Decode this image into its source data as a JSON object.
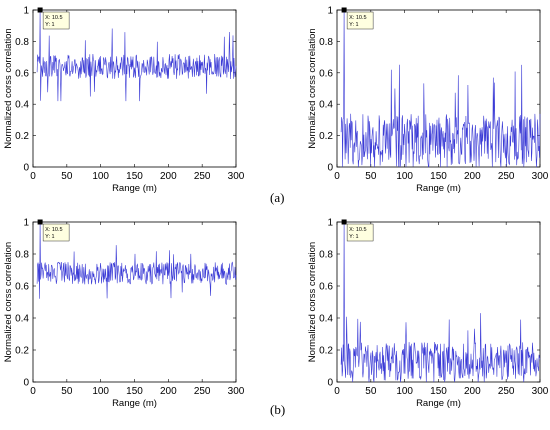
{
  "panel_labels": [
    "(a)",
    "(b)"
  ],
  "chart_data": [
    {
      "type": "line",
      "panel": "(a)",
      "xlabel": "Range (m)",
      "ylabel": "Normalized corss correlation",
      "xlim": [
        0,
        300
      ],
      "ylim": [
        0,
        1
      ],
      "xticks": [
        0,
        50,
        100,
        150,
        200,
        250,
        300
      ],
      "yticks": [
        0,
        0.2,
        0.4,
        0.6,
        0.8,
        1
      ],
      "series_color": "#3b3bd6",
      "series": [
        {
          "x_start": 6,
          "x_end": 300,
          "peak_x": 10.5,
          "peak_y": 1,
          "baseline_mean": 0.64,
          "noise_amplitude": 0.08,
          "extreme_min": 0.42,
          "extreme_max": 0.9
        }
      ],
      "datatip": {
        "x": 10.5,
        "y": 1,
        "line1": "X: 10.5",
        "line2": "Y: 1"
      }
    },
    {
      "type": "line",
      "panel": "(a)",
      "xlabel": "Range (m)",
      "ylabel": "Normalized corss correlation",
      "xlim": [
        0,
        300
      ],
      "ylim": [
        0,
        1
      ],
      "xticks": [
        0,
        50,
        100,
        150,
        200,
        250,
        300
      ],
      "yticks": [
        0,
        0.2,
        0.4,
        0.6,
        0.8,
        1
      ],
      "series_color": "#3b3bd6",
      "series": [
        {
          "x_start": 6,
          "x_end": 300,
          "peak_x": 10.5,
          "peak_y": 1,
          "baseline_mean": 0.17,
          "noise_amplitude": 0.17,
          "extreme_min": 0.0,
          "extreme_max": 0.66
        }
      ],
      "datatip": {
        "x": 10.5,
        "y": 1,
        "line1": "X: 10.5",
        "line2": "Y: 1"
      }
    },
    {
      "type": "line",
      "panel": "(b)",
      "xlabel": "Range (m)",
      "ylabel": "Normalized corss correlation",
      "xlim": [
        0,
        300
      ],
      "ylim": [
        0,
        1
      ],
      "xticks": [
        0,
        50,
        100,
        150,
        200,
        250,
        300
      ],
      "yticks": [
        0,
        0.2,
        0.4,
        0.6,
        0.8,
        1
      ],
      "series_color": "#3b3bd6",
      "series": [
        {
          "x_start": 6,
          "x_end": 300,
          "peak_x": 10.5,
          "peak_y": 1,
          "baseline_mean": 0.68,
          "noise_amplitude": 0.07,
          "extreme_min": 0.52,
          "extreme_max": 0.86
        }
      ],
      "datatip": {
        "x": 10.5,
        "y": 1,
        "line1": "X: 10.5",
        "line2": "Y: 1"
      }
    },
    {
      "type": "line",
      "panel": "(b)",
      "xlabel": "Range (m)",
      "ylabel": "Normalized corss correlation",
      "xlim": [
        0,
        300
      ],
      "ylim": [
        0,
        1
      ],
      "xticks": [
        0,
        50,
        100,
        150,
        200,
        250,
        300
      ],
      "yticks": [
        0,
        0.2,
        0.4,
        0.6,
        0.8,
        1
      ],
      "series_color": "#3b3bd6",
      "series": [
        {
          "x_start": 6,
          "x_end": 300,
          "peak_x": 10.5,
          "peak_y": 1,
          "baseline_mean": 0.13,
          "noise_amplitude": 0.12,
          "extreme_min": 0.0,
          "extreme_max": 0.45
        }
      ],
      "datatip": {
        "x": 10.5,
        "y": 1,
        "line1": "X: 10.5",
        "line2": "Y: 1"
      }
    }
  ]
}
